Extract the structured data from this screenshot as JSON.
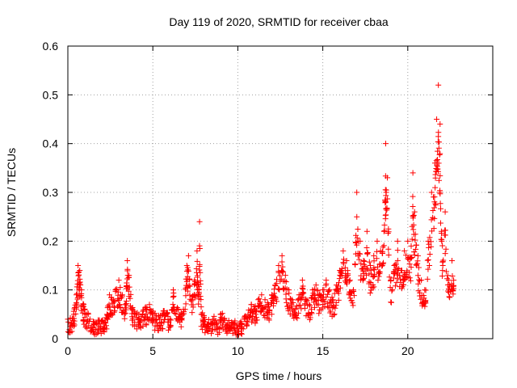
{
  "colors": {
    "background": "#ffffff",
    "axis": "#000000",
    "grid": "#a0a0a0",
    "series": "#ff0000"
  },
  "chart_data": {
    "type": "scatter",
    "title": "Day 119 of 2020, SRMTID for receiver cbaa",
    "xlabel": "GPS time / hours",
    "ylabel": "SRMTID / TECUs",
    "xlim": [
      0,
      25
    ],
    "ylim": [
      0,
      0.6
    ],
    "xticks": [
      0,
      5,
      10,
      15,
      20
    ],
    "xtick_labels": [
      "0",
      "5",
      "10",
      "15",
      "20"
    ],
    "yticks": [
      0,
      0.1,
      0.2,
      0.3,
      0.4,
      0.5,
      0.6
    ],
    "ytick_labels": [
      "0",
      "0.1",
      "0.2",
      "0.3",
      "0.4",
      "0.5",
      "0.6"
    ],
    "grid": true,
    "marker": "+",
    "series": [
      {
        "name": "SRMTID",
        "x": [
          0.0,
          0.2,
          0.35,
          0.5,
          0.6,
          0.7,
          0.8,
          0.95,
          1.1,
          1.3,
          1.5,
          1.7,
          1.9,
          2.1,
          2.3,
          2.45,
          2.6,
          2.8,
          3.0,
          3.2,
          3.4,
          3.5,
          3.6,
          3.8,
          4.0,
          4.2,
          4.4,
          4.6,
          4.8,
          5.0,
          5.2,
          5.4,
          5.6,
          5.8,
          6.0,
          6.2,
          6.4,
          6.6,
          6.8,
          7.0,
          7.1,
          7.3,
          7.45,
          7.6,
          7.7,
          7.75,
          7.85,
          8.0,
          8.2,
          8.4,
          8.6,
          8.8,
          9.0,
          9.2,
          9.4,
          9.6,
          9.8,
          10.0,
          10.2,
          10.4,
          10.6,
          10.8,
          11.0,
          11.2,
          11.4,
          11.6,
          11.8,
          12.0,
          12.2,
          12.4,
          12.6,
          12.8,
          13.0,
          13.2,
          13.4,
          13.6,
          13.8,
          14.0,
          14.2,
          14.4,
          14.6,
          14.8,
          15.0,
          15.2,
          15.4,
          15.6,
          15.8,
          16.0,
          16.2,
          16.4,
          16.6,
          16.8,
          17.0,
          17.2,
          17.4,
          17.6,
          17.8,
          18.0,
          18.2,
          18.4,
          18.6,
          18.7,
          18.8,
          19.0,
          19.2,
          19.4,
          19.6,
          19.8,
          20.0,
          20.2,
          20.3,
          20.4,
          20.6,
          20.8,
          21.0,
          21.2,
          21.4,
          21.6,
          21.7,
          21.8,
          21.9,
          22.0,
          22.2,
          22.4,
          22.6,
          22.7
        ],
        "y": [
          0.04,
          0.03,
          0.05,
          0.09,
          0.15,
          0.14,
          0.1,
          0.06,
          0.05,
          0.04,
          0.03,
          0.03,
          0.03,
          0.03,
          0.05,
          0.09,
          0.08,
          0.1,
          0.12,
          0.09,
          0.07,
          0.16,
          0.13,
          0.06,
          0.05,
          0.04,
          0.05,
          0.06,
          0.07,
          0.05,
          0.04,
          0.04,
          0.05,
          0.05,
          0.04,
          0.1,
          0.06,
          0.05,
          0.06,
          0.15,
          0.17,
          0.08,
          0.12,
          0.18,
          0.1,
          0.24,
          0.05,
          0.04,
          0.03,
          0.03,
          0.04,
          0.02,
          0.05,
          0.04,
          0.03,
          0.02,
          0.03,
          0.02,
          0.03,
          0.04,
          0.05,
          0.07,
          0.06,
          0.08,
          0.09,
          0.08,
          0.07,
          0.09,
          0.11,
          0.15,
          0.17,
          0.13,
          0.1,
          0.08,
          0.06,
          0.09,
          0.12,
          0.08,
          0.07,
          0.1,
          0.11,
          0.09,
          0.1,
          0.12,
          0.1,
          0.08,
          0.11,
          0.14,
          0.18,
          0.16,
          0.12,
          0.1,
          0.3,
          0.2,
          0.16,
          0.22,
          0.15,
          0.17,
          0.2,
          0.18,
          0.22,
          0.4,
          0.33,
          0.12,
          0.15,
          0.2,
          0.14,
          0.18,
          0.2,
          0.19,
          0.34,
          0.26,
          0.17,
          0.12,
          0.1,
          0.2,
          0.3,
          0.36,
          0.45,
          0.52,
          0.44,
          0.2,
          0.26,
          0.12,
          0.16,
          0.12
        ],
        "noise": 0.045,
        "density": 9
      }
    ]
  }
}
